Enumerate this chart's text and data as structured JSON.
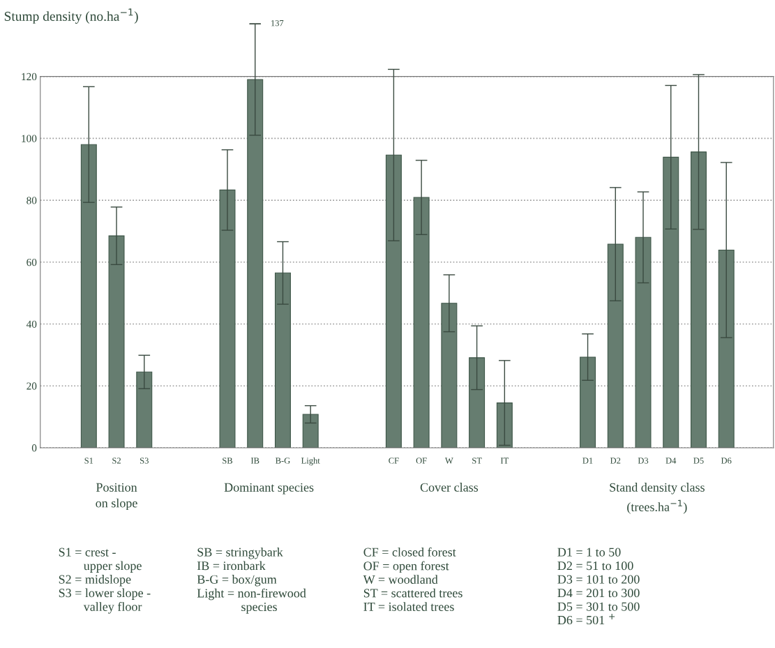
{
  "chart_data": {
    "type": "bar",
    "ylabel": "Stump density (no.ha$^{−1}$)",
    "categories": [
      "S1",
      "S2",
      "S3",
      null,
      null,
      "SB",
      "IB",
      "B-G",
      "Light",
      null,
      null,
      "CF",
      "OF",
      "W",
      "ST",
      "IT",
      null,
      null,
      "D1",
      "D2",
      "D3",
      "D4",
      "D5",
      "D6"
    ],
    "values": [
      98,
      68.5,
      24.5,
      null,
      null,
      83.3,
      119,
      56.5,
      10.8,
      null,
      null,
      94.6,
      80.9,
      46.7,
      29.1,
      14.5,
      null,
      null,
      29.3,
      65.8,
      68,
      93.9,
      95.6,
      63.9
    ],
    "errors": [
      18.7,
      9.3,
      5.4,
      null,
      null,
      13,
      18,
      10.1,
      2.8,
      null,
      null,
      27.7,
      12,
      9.2,
      10.3,
      13.7,
      null,
      null,
      7.5,
      18.3,
      14.7,
      23.2,
      25,
      28.3
    ],
    "color": "#667d70",
    "ylim": [
      0,
      120
    ],
    "yticks": [
      0,
      20,
      40,
      60,
      80,
      100,
      120
    ],
    "grid": "y",
    "line_style": "dotted",
    "legend": false,
    "annotations": [
      {
        "text": "137",
        "x": "IB",
        "y": 137
      },
      "Position\non slope",
      "Dominant species",
      "Cover class",
      "Stand density class\n(trees.ha$^{−1}$)",
      "S1 = crest -\n        upper slope\nS2 = midslope\nS3 = lower slope -\n        valley floor",
      "SB = stringybark\nIB = ironbark\nB-G = box/gum\nLight = non-firewood\n              species",
      "CF = closed forest\nOF = open forest\nW = woodland\nST = scattered trees\nIT = isolated trees",
      "D1 = 1 to 50\nD2 = 51 to 100\nD3 = 101 to 200\nD4 = 201 to 300\nD5 = 301 to 500\nD6 = 501 $^{+}$"
    ]
  }
}
